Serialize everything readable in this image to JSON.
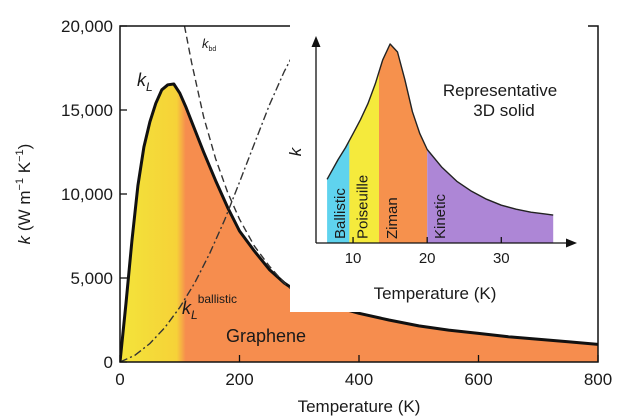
{
  "chart_data": [
    {
      "type": "line",
      "xlabel": "Temperature (K)",
      "ylabel_parts": {
        "symbol": "k",
        "units": " (W m",
        "exp1": "−1",
        "mid": " K",
        "exp2": "−1",
        "close": ")"
      },
      "xlim": [
        0,
        800
      ],
      "ylim": [
        0,
        20000
      ],
      "x_ticks": [
        0,
        200,
        400,
        600,
        800
      ],
      "x_tick_labels": [
        "0",
        "200",
        "400",
        "600",
        "800"
      ],
      "y_ticks": [
        0,
        5000,
        10000,
        15000,
        20000
      ],
      "y_tick_labels": [
        "0",
        "5,000",
        "10,000",
        "15,000",
        "20,000"
      ],
      "fill_gradient": [
        {
          "x": 0,
          "color": "#f3e43a"
        },
        {
          "x": 95,
          "color": "#f6d238"
        },
        {
          "x": 110,
          "color": "#f68d4e"
        },
        {
          "x": 800,
          "color": "#f68d4e"
        }
      ],
      "series": [
        {
          "style": "solid",
          "x": [
            0,
            10,
            20,
            30,
            40,
            50,
            60,
            70,
            80,
            90,
            100,
            110,
            120,
            140,
            160,
            180,
            200,
            225,
            250,
            275,
            300,
            350,
            400,
            450,
            500,
            550,
            600,
            650,
            700,
            750,
            800
          ],
          "y": [
            0,
            3500,
            7200,
            10500,
            12800,
            14300,
            15400,
            16200,
            16500,
            16550,
            16000,
            15200,
            14300,
            12500,
            10800,
            9200,
            7800,
            6600,
            5500,
            4700,
            4100,
            3400,
            2900,
            2500,
            2150,
            1900,
            1700,
            1500,
            1350,
            1200,
            1050
          ]
        },
        {
          "style": "dashed",
          "x": [
            108,
            120,
            140,
            160,
            180,
            200,
            225,
            250,
            275,
            300
          ],
          "y": [
            20000,
            17800,
            14600,
            12100,
            10100,
            8500,
            6900,
            5700,
            4700,
            3900
          ]
        },
        {
          "style": "dashdot",
          "x": [
            0,
            25,
            50,
            75,
            100,
            125,
            150,
            175,
            200,
            225,
            250,
            275,
            300,
            328
          ],
          "y": [
            0,
            400,
            1100,
            2050,
            3250,
            4700,
            6450,
            8450,
            10700,
            13000,
            15300,
            17300,
            19000,
            20000
          ]
        }
      ],
      "annotations": {
        "kL": {
          "main": "k",
          "sub": "L"
        },
        "kbd": {
          "main": "k",
          "sub": "bd"
        },
        "kball": {
          "main": "k",
          "sub": "L",
          "sup": "ballistic"
        },
        "material": "Graphene"
      }
    },
    {
      "type": "line",
      "xlabel": "Temperature (K)",
      "ylabel": "k",
      "xlim": [
        5,
        39
      ],
      "x_ticks": [
        10,
        20,
        30
      ],
      "x_tick_labels": [
        "10",
        "20",
        "30"
      ],
      "y_relative": true,
      "title_lines": [
        "Representative",
        "3D solid"
      ],
      "series": [
        {
          "style": "solid",
          "x": [
            6.5,
            8,
            9,
            10,
            11,
            12,
            13,
            14,
            15,
            16,
            17,
            18,
            19,
            20,
            22,
            24,
            26,
            28,
            30,
            32,
            34,
            36,
            37
          ],
          "y": [
            0.32,
            0.42,
            0.48,
            0.55,
            0.62,
            0.7,
            0.8,
            0.92,
            1.0,
            0.96,
            0.82,
            0.66,
            0.55,
            0.47,
            0.38,
            0.31,
            0.26,
            0.22,
            0.19,
            0.17,
            0.155,
            0.145,
            0.14
          ]
        }
      ],
      "regimes": [
        {
          "label": "Ballistic",
          "x_start": 6.5,
          "x_end": 9.5,
          "color": "#5fd3ee"
        },
        {
          "label": "Poiseuille",
          "x_start": 9.5,
          "x_end": 13.5,
          "color": "#f5ea3c"
        },
        {
          "label": "Ziman",
          "x_start": 13.5,
          "x_end": 20,
          "color": "#f6914d"
        },
        {
          "label": "Kinetic",
          "x_start": 20,
          "x_end": 37,
          "color": "#ad86d6"
        }
      ]
    }
  ]
}
